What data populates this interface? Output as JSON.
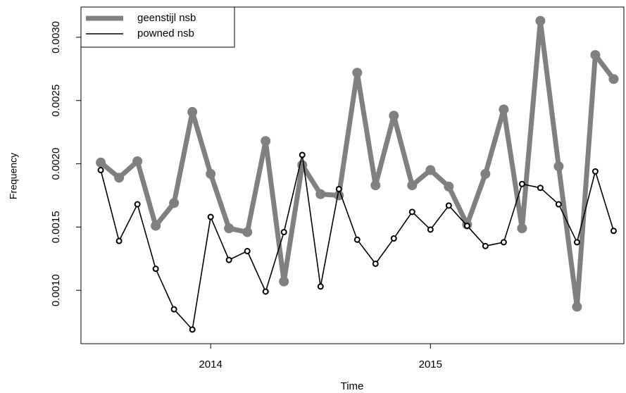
{
  "chart_data": {
    "type": "line",
    "x_label": "Time",
    "y_label": "Frequency",
    "x": [
      2013.5,
      2013.5833,
      2013.6667,
      2013.75,
      2013.8333,
      2013.9167,
      2014,
      2014.0833,
      2014.1667,
      2014.25,
      2014.3333,
      2014.4167,
      2014.5,
      2014.5833,
      2014.6667,
      2014.75,
      2014.8333,
      2014.9167,
      2015,
      2015.0833,
      2015.1667,
      2015.25,
      2015.3333,
      2015.4167,
      2015.5,
      2015.5833,
      2015.6667,
      2015.75,
      2015.8333
    ],
    "series": [
      {
        "name": "geenstijl nsb",
        "color": "#808080",
        "values": [
          0.00201,
          0.00189,
          0.00202,
          0.00151,
          0.00169,
          0.00241,
          0.00192,
          0.00149,
          0.00146,
          0.00218,
          0.00107,
          0.00199,
          0.00176,
          0.00175,
          0.00272,
          0.00183,
          0.00238,
          0.00183,
          0.00195,
          0.00182,
          0.00152,
          0.00192,
          0.00243,
          0.00149,
          0.00313,
          0.00198,
          0.00087,
          0.00286,
          0.00267
        ]
      },
      {
        "name": "powned nsb",
        "color": "#000000",
        "values": [
          0.00195,
          0.00139,
          0.00168,
          0.00117,
          0.00085,
          0.00069,
          0.00158,
          0.00124,
          0.00131,
          0.00099,
          0.00146,
          0.00207,
          0.00103,
          0.0018,
          0.0014,
          0.00121,
          0.00141,
          0.00162,
          0.00148,
          0.00167,
          0.00151,
          0.00135,
          0.00138,
          0.00184,
          0.00181,
          0.00168,
          0.00138,
          0.00194,
          0.00147
        ]
      }
    ],
    "xlim": [
      2013.41,
      2015.88
    ],
    "xticks": [
      2014,
      2015
    ],
    "ylim": [
      0.000578,
      0.003239
    ],
    "yticks": [
      {
        "value": 0.001,
        "label": "0.0010"
      },
      {
        "value": 0.0015,
        "label": "0.0015"
      },
      {
        "value": 0.002,
        "label": "0.0020"
      },
      {
        "value": 0.0025,
        "label": "0.0025"
      },
      {
        "value": 0.003,
        "label": "0.0030"
      }
    ],
    "legend": "topleft"
  }
}
